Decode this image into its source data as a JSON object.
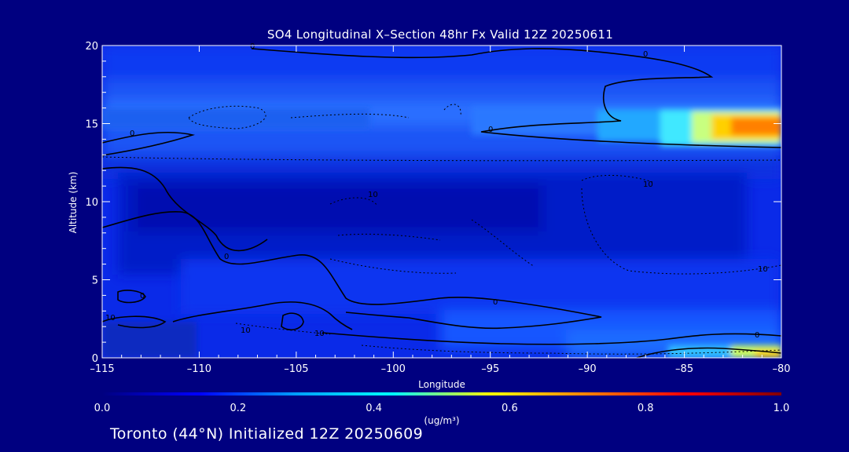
{
  "title": "SO4 Longitudinal X–Section 48hr  Fx Valid 12Z 20250611",
  "caption": "Toronto (44°N) Initialized 12Z 20250609",
  "colors": {
    "background": "#000080",
    "text": "#ffffff",
    "contour": "#000000"
  },
  "chart_data": {
    "type": "heatmap",
    "xlabel": "Longitude",
    "ylabel": "Altitude (km)",
    "xlim": [
      -115,
      -80
    ],
    "ylim": [
      0,
      20
    ],
    "x_ticks": [
      -115,
      -110,
      -105,
      -100,
      -95,
      -90,
      -85,
      -80
    ],
    "x_tick_labels": [
      "–115",
      "–110",
      "–105",
      "–100",
      "–95",
      "–90",
      "–85",
      "–80"
    ],
    "y_ticks": [
      0,
      5,
      10,
      15,
      20
    ],
    "y_tick_labels": [
      "0",
      "5",
      "10",
      "15",
      "20"
    ],
    "colorbar": {
      "label": "(ug/m³)",
      "range": [
        0,
        1
      ],
      "ticks": [
        0.0,
        0.2,
        0.4,
        0.6,
        0.8,
        1.0
      ],
      "tick_labels": [
        "0.0",
        "0.2",
        "0.4",
        "0.6",
        "0.8",
        "1.0"
      ],
      "colormap": [
        "#000080",
        "#0000ff",
        "#00a0ff",
        "#00ffff",
        "#ffff00",
        "#ff8000",
        "#ff0000",
        "#800000"
      ]
    },
    "field_regions": [
      {
        "desc": "upper plume",
        "x": [
          -115,
          -80
        ],
        "y": [
          13.5,
          16.5
        ],
        "value": 0.22
      },
      {
        "desc": "plume core",
        "x": [
          -84,
          -80
        ],
        "y": [
          14,
          15.5
        ],
        "value": 0.75
      },
      {
        "desc": "mid-troposphere minimum",
        "x": [
          -113,
          -86
        ],
        "y": [
          6,
          13
        ],
        "value": 0.05
      },
      {
        "desc": "boundary layer",
        "x": [
          -100,
          -80
        ],
        "y": [
          0,
          3
        ],
        "value": 0.25
      },
      {
        "desc": "surface maximum",
        "x": [
          -84,
          -80
        ],
        "y": [
          0,
          1
        ],
        "value": 0.55
      }
    ],
    "contour_labels": [
      "0",
      "0",
      "0",
      "0",
      "0",
      "0",
      "0",
      "0",
      "10",
      "10",
      "10",
      "10",
      "10",
      "10"
    ]
  }
}
